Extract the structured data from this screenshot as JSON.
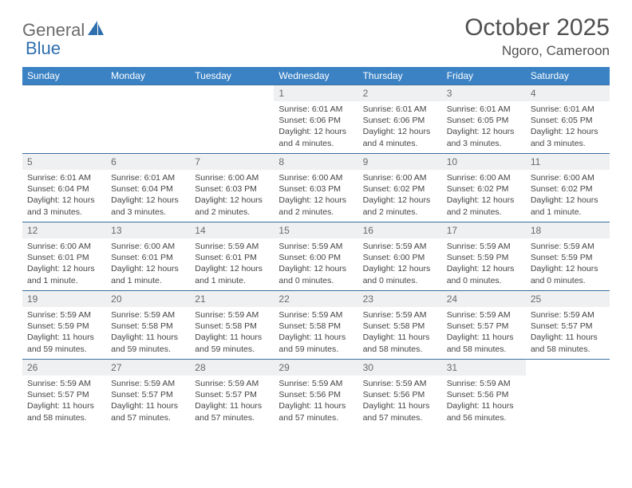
{
  "brand": {
    "word1": "General",
    "word2": "Blue"
  },
  "title": "October 2025",
  "location": "Ngoro, Cameroon",
  "colors": {
    "header_bg": "#3b82c4",
    "header_text": "#ffffff",
    "row_border": "#3b6fa0",
    "daynum_bg": "#eef0f1",
    "text": "#444444",
    "brand_gray": "#6b6b6b",
    "brand_blue": "#2f6fae"
  },
  "day_headers": [
    "Sunday",
    "Monday",
    "Tuesday",
    "Wednesday",
    "Thursday",
    "Friday",
    "Saturday"
  ],
  "weeks": [
    [
      {
        "num": "",
        "sunrise": "",
        "sunset": "",
        "daylight": ""
      },
      {
        "num": "",
        "sunrise": "",
        "sunset": "",
        "daylight": ""
      },
      {
        "num": "",
        "sunrise": "",
        "sunset": "",
        "daylight": ""
      },
      {
        "num": "1",
        "sunrise": "Sunrise: 6:01 AM",
        "sunset": "Sunset: 6:06 PM",
        "daylight": "Daylight: 12 hours and 4 minutes."
      },
      {
        "num": "2",
        "sunrise": "Sunrise: 6:01 AM",
        "sunset": "Sunset: 6:06 PM",
        "daylight": "Daylight: 12 hours and 4 minutes."
      },
      {
        "num": "3",
        "sunrise": "Sunrise: 6:01 AM",
        "sunset": "Sunset: 6:05 PM",
        "daylight": "Daylight: 12 hours and 3 minutes."
      },
      {
        "num": "4",
        "sunrise": "Sunrise: 6:01 AM",
        "sunset": "Sunset: 6:05 PM",
        "daylight": "Daylight: 12 hours and 3 minutes."
      }
    ],
    [
      {
        "num": "5",
        "sunrise": "Sunrise: 6:01 AM",
        "sunset": "Sunset: 6:04 PM",
        "daylight": "Daylight: 12 hours and 3 minutes."
      },
      {
        "num": "6",
        "sunrise": "Sunrise: 6:01 AM",
        "sunset": "Sunset: 6:04 PM",
        "daylight": "Daylight: 12 hours and 3 minutes."
      },
      {
        "num": "7",
        "sunrise": "Sunrise: 6:00 AM",
        "sunset": "Sunset: 6:03 PM",
        "daylight": "Daylight: 12 hours and 2 minutes."
      },
      {
        "num": "8",
        "sunrise": "Sunrise: 6:00 AM",
        "sunset": "Sunset: 6:03 PM",
        "daylight": "Daylight: 12 hours and 2 minutes."
      },
      {
        "num": "9",
        "sunrise": "Sunrise: 6:00 AM",
        "sunset": "Sunset: 6:02 PM",
        "daylight": "Daylight: 12 hours and 2 minutes."
      },
      {
        "num": "10",
        "sunrise": "Sunrise: 6:00 AM",
        "sunset": "Sunset: 6:02 PM",
        "daylight": "Daylight: 12 hours and 2 minutes."
      },
      {
        "num": "11",
        "sunrise": "Sunrise: 6:00 AM",
        "sunset": "Sunset: 6:02 PM",
        "daylight": "Daylight: 12 hours and 1 minute."
      }
    ],
    [
      {
        "num": "12",
        "sunrise": "Sunrise: 6:00 AM",
        "sunset": "Sunset: 6:01 PM",
        "daylight": "Daylight: 12 hours and 1 minute."
      },
      {
        "num": "13",
        "sunrise": "Sunrise: 6:00 AM",
        "sunset": "Sunset: 6:01 PM",
        "daylight": "Daylight: 12 hours and 1 minute."
      },
      {
        "num": "14",
        "sunrise": "Sunrise: 5:59 AM",
        "sunset": "Sunset: 6:01 PM",
        "daylight": "Daylight: 12 hours and 1 minute."
      },
      {
        "num": "15",
        "sunrise": "Sunrise: 5:59 AM",
        "sunset": "Sunset: 6:00 PM",
        "daylight": "Daylight: 12 hours and 0 minutes."
      },
      {
        "num": "16",
        "sunrise": "Sunrise: 5:59 AM",
        "sunset": "Sunset: 6:00 PM",
        "daylight": "Daylight: 12 hours and 0 minutes."
      },
      {
        "num": "17",
        "sunrise": "Sunrise: 5:59 AM",
        "sunset": "Sunset: 5:59 PM",
        "daylight": "Daylight: 12 hours and 0 minutes."
      },
      {
        "num": "18",
        "sunrise": "Sunrise: 5:59 AM",
        "sunset": "Sunset: 5:59 PM",
        "daylight": "Daylight: 12 hours and 0 minutes."
      }
    ],
    [
      {
        "num": "19",
        "sunrise": "Sunrise: 5:59 AM",
        "sunset": "Sunset: 5:59 PM",
        "daylight": "Daylight: 11 hours and 59 minutes."
      },
      {
        "num": "20",
        "sunrise": "Sunrise: 5:59 AM",
        "sunset": "Sunset: 5:58 PM",
        "daylight": "Daylight: 11 hours and 59 minutes."
      },
      {
        "num": "21",
        "sunrise": "Sunrise: 5:59 AM",
        "sunset": "Sunset: 5:58 PM",
        "daylight": "Daylight: 11 hours and 59 minutes."
      },
      {
        "num": "22",
        "sunrise": "Sunrise: 5:59 AM",
        "sunset": "Sunset: 5:58 PM",
        "daylight": "Daylight: 11 hours and 59 minutes."
      },
      {
        "num": "23",
        "sunrise": "Sunrise: 5:59 AM",
        "sunset": "Sunset: 5:58 PM",
        "daylight": "Daylight: 11 hours and 58 minutes."
      },
      {
        "num": "24",
        "sunrise": "Sunrise: 5:59 AM",
        "sunset": "Sunset: 5:57 PM",
        "daylight": "Daylight: 11 hours and 58 minutes."
      },
      {
        "num": "25",
        "sunrise": "Sunrise: 5:59 AM",
        "sunset": "Sunset: 5:57 PM",
        "daylight": "Daylight: 11 hours and 58 minutes."
      }
    ],
    [
      {
        "num": "26",
        "sunrise": "Sunrise: 5:59 AM",
        "sunset": "Sunset: 5:57 PM",
        "daylight": "Daylight: 11 hours and 58 minutes."
      },
      {
        "num": "27",
        "sunrise": "Sunrise: 5:59 AM",
        "sunset": "Sunset: 5:57 PM",
        "daylight": "Daylight: 11 hours and 57 minutes."
      },
      {
        "num": "28",
        "sunrise": "Sunrise: 5:59 AM",
        "sunset": "Sunset: 5:57 PM",
        "daylight": "Daylight: 11 hours and 57 minutes."
      },
      {
        "num": "29",
        "sunrise": "Sunrise: 5:59 AM",
        "sunset": "Sunset: 5:56 PM",
        "daylight": "Daylight: 11 hours and 57 minutes."
      },
      {
        "num": "30",
        "sunrise": "Sunrise: 5:59 AM",
        "sunset": "Sunset: 5:56 PM",
        "daylight": "Daylight: 11 hours and 57 minutes."
      },
      {
        "num": "31",
        "sunrise": "Sunrise: 5:59 AM",
        "sunset": "Sunset: 5:56 PM",
        "daylight": "Daylight: 11 hours and 56 minutes."
      },
      {
        "num": "",
        "sunrise": "",
        "sunset": "",
        "daylight": ""
      }
    ]
  ]
}
